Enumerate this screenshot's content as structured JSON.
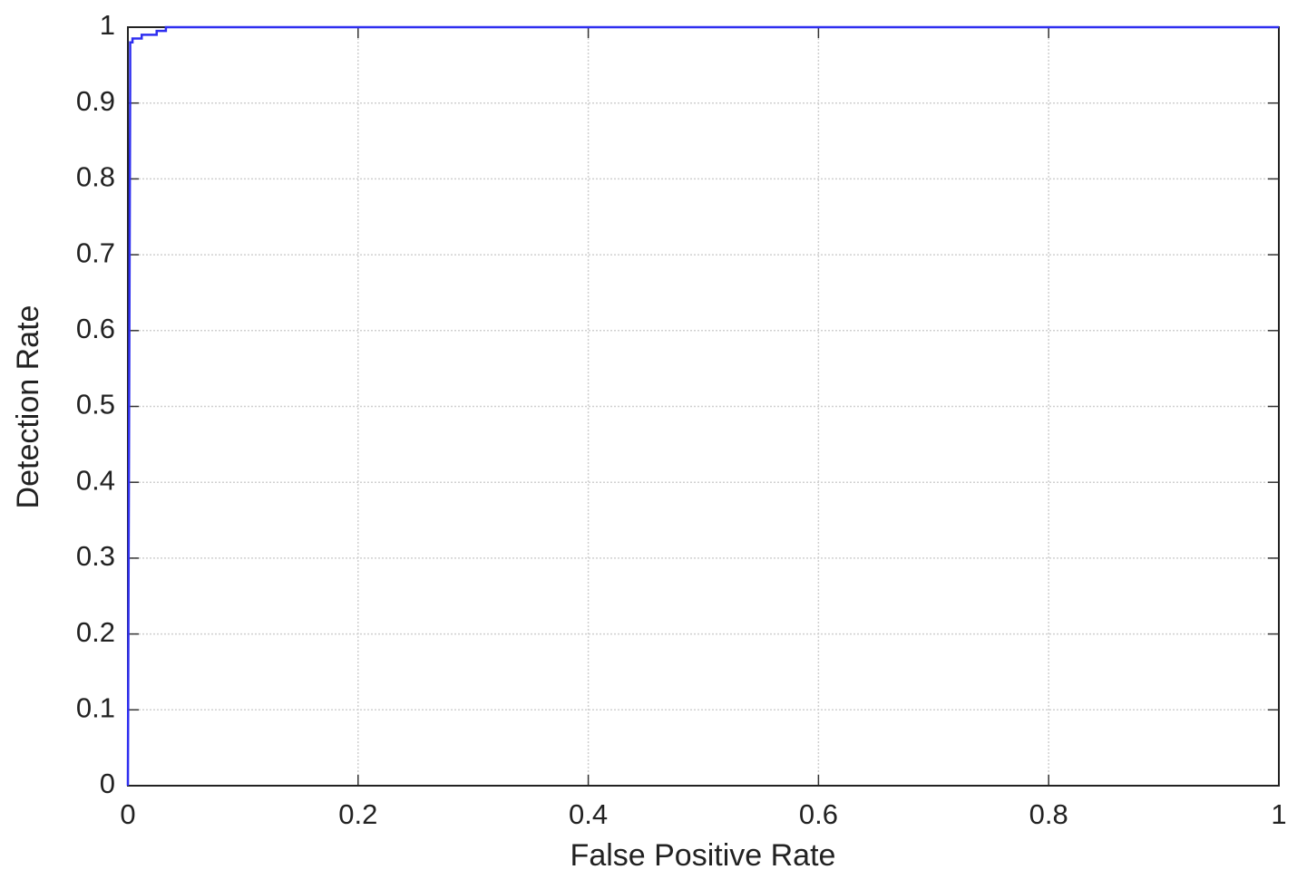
{
  "chart_data": {
    "type": "line",
    "xlabel": "False Positive Rate",
    "ylabel": "Detection Rate",
    "x": [
      0,
      0.002,
      0.002,
      0.004,
      0.004,
      0.012,
      0.012,
      0.025,
      0.025,
      0.033,
      0.033,
      1
    ],
    "series": [
      {
        "color": "#2e2ef0",
        "values": [
          0,
          0.93,
          0.98,
          0.98,
          0.985,
          0.985,
          0.99,
          0.99,
          0.995,
          0.995,
          1,
          1
        ]
      }
    ],
    "xlim": [
      0,
      1
    ],
    "ylim": [
      0,
      1
    ],
    "xticks": [
      0,
      0.2,
      0.4,
      0.6,
      0.8,
      1
    ],
    "yticks": [
      0,
      0.1,
      0.2,
      0.3,
      0.4,
      0.5,
      0.6,
      0.7,
      0.8,
      0.9,
      1
    ],
    "grid": true
  }
}
